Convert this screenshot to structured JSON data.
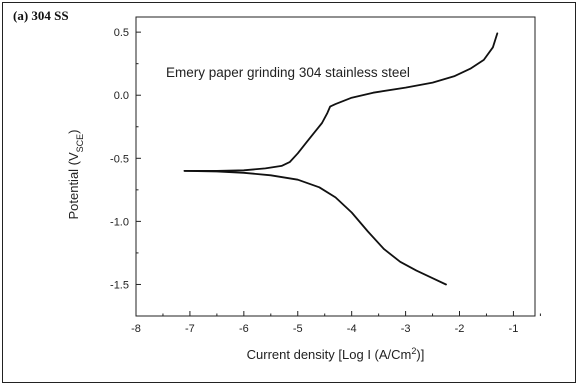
{
  "panel_label": "(a) 304 SS",
  "chart_data": {
    "type": "line",
    "title": "",
    "annotation": "Emery paper grinding 304 stainless steel",
    "xlabel": "Current density [Log I (A/Cm²)]",
    "xlabel_parts": {
      "main": "Current density [Log I (A/Cm",
      "sup": "2",
      "tail": ")]"
    },
    "ylabel": "Potential (VSCE)",
    "ylabel_parts": {
      "main": "Potential (V",
      "sub": "SCE",
      "tail": ")"
    },
    "xlim": [
      -8,
      -0.6
    ],
    "ylim": [
      -1.75,
      0.62
    ],
    "xticks": [
      -8,
      -7,
      -6,
      -5,
      -4,
      -3,
      -2,
      -1
    ],
    "yticks": [
      0.5,
      0.0,
      -0.5,
      -1.0,
      -1.5
    ],
    "ytick_labels": [
      "0.5",
      "0.0",
      "-0.5",
      "-1.0",
      "-1.5"
    ],
    "grid": false,
    "line_color": "#111111",
    "series": [
      {
        "branch": "anodic",
        "x": [
          -7.1,
          -6.5,
          -6.0,
          -5.6,
          -5.3,
          -5.15,
          -5.0,
          -4.85,
          -4.7,
          -4.55,
          -4.45,
          -4.4,
          -4.3,
          -4.0,
          -3.6,
          -3.0,
          -2.5,
          -2.1,
          -1.8,
          -1.55,
          -1.38,
          -1.3
        ],
        "y": [
          -0.6,
          -0.6,
          -0.595,
          -0.58,
          -0.56,
          -0.53,
          -0.46,
          -0.38,
          -0.3,
          -0.22,
          -0.14,
          -0.09,
          -0.07,
          -0.02,
          0.02,
          0.06,
          0.1,
          0.15,
          0.21,
          0.28,
          0.38,
          0.49
        ]
      },
      {
        "branch": "cathodic",
        "x": [
          -7.1,
          -6.5,
          -6.0,
          -5.5,
          -5.0,
          -4.6,
          -4.3,
          -4.0,
          -3.7,
          -3.4,
          -3.1,
          -2.8,
          -2.5,
          -2.25
        ],
        "y": [
          -0.6,
          -0.605,
          -0.615,
          -0.635,
          -0.67,
          -0.73,
          -0.81,
          -0.93,
          -1.08,
          -1.22,
          -1.32,
          -1.39,
          -1.45,
          -1.5
        ]
      }
    ]
  }
}
